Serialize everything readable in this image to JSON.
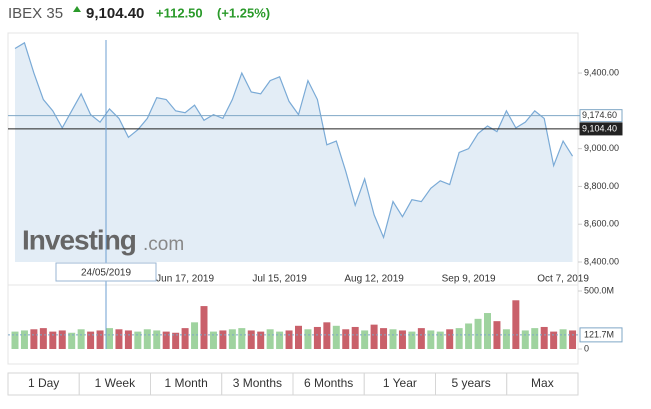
{
  "header": {
    "name": "IBEX 35",
    "price": "9,104.40",
    "change": "+112.50",
    "change_pct": "(+1.25%)"
  },
  "chart_data": {
    "type": "area",
    "color": "#7aaad6",
    "fill": "#e3edf6",
    "categories": [
      null,
      null,
      null,
      null,
      null,
      null,
      null,
      null,
      null,
      null,
      null,
      null,
      null,
      null,
      null,
      null,
      null,
      null,
      "Jun 17, 2019",
      null,
      null,
      null,
      null,
      null,
      null,
      null,
      null,
      null,
      "Jul 15, 2019",
      null,
      null,
      null,
      null,
      null,
      null,
      null,
      null,
      null,
      "Aug 12, 2019",
      null,
      null,
      null,
      null,
      null,
      null,
      null,
      null,
      null,
      "Sep 9, 2019",
      null,
      null,
      null,
      null,
      null,
      null,
      null,
      null,
      null,
      "Oct 7, 2019",
      null
    ],
    "values": [
      9530,
      9560,
      9400,
      9260,
      9200,
      9110,
      9200,
      9290,
      9180,
      9140,
      9210,
      9160,
      9060,
      9100,
      9160,
      9270,
      9260,
      9200,
      9190,
      9230,
      9150,
      9180,
      9160,
      9260,
      9400,
      9300,
      9290,
      9360,
      9380,
      9250,
      9180,
      9360,
      9260,
      9020,
      9040,
      8880,
      8700,
      8840,
      8650,
      8530,
      8720,
      8640,
      8730,
      8720,
      8790,
      8830,
      8810,
      8980,
      9000,
      9080,
      9120,
      9090,
      9200,
      9110,
      9140,
      9200,
      9160,
      8910,
      9040,
      8960
    ],
    "ylim": [
      8400,
      9575
    ],
    "yticks": [
      {
        "value": 8400,
        "label": "8,400.00"
      },
      {
        "value": 8600,
        "label": "8,600.00"
      },
      {
        "value": 8800,
        "label": "8,800.00"
      },
      {
        "value": 9000,
        "label": "9,000.00"
      },
      {
        "value": 9400,
        "label": "9,400.00"
      }
    ],
    "reference_lines": [
      {
        "value": 9174.6,
        "label": "9,174.60",
        "color": "#7fa7c6"
      },
      {
        "value": 9104.4,
        "label": "9,104.40",
        "color": "#222222"
      }
    ],
    "crosshair_label": "24/05/2019",
    "watermark": {
      "bold": "Investing",
      "suffix": ".com"
    },
    "volume": {
      "up_color": "#9fd39f",
      "down_color": "#c9606a",
      "values": [
        150000000,
        160000000,
        170000000,
        180000000,
        150000000,
        160000000,
        140000000,
        170000000,
        150000000,
        160000000,
        180000000,
        170000000,
        160000000,
        150000000,
        170000000,
        160000000,
        150000000,
        140000000,
        180000000,
        230000000,
        370000000,
        150000000,
        160000000,
        170000000,
        180000000,
        160000000,
        150000000,
        170000000,
        150000000,
        160000000,
        200000000,
        170000000,
        190000000,
        230000000,
        200000000,
        170000000,
        190000000,
        160000000,
        210000000,
        180000000,
        170000000,
        160000000,
        150000000,
        180000000,
        160000000,
        150000000,
        170000000,
        180000000,
        220000000,
        260000000,
        310000000,
        240000000,
        170000000,
        420000000,
        160000000,
        180000000,
        190000000,
        150000000,
        170000000,
        160000000
      ],
      "ylim": [
        0,
        500000000
      ],
      "yticks": [
        0,
        {
          "value": 500000000,
          "label": "500.0M"
        }
      ],
      "current": {
        "value": 121700000,
        "label": "121.7M"
      }
    }
  },
  "range_buttons": [
    "1 Day",
    "1 Week",
    "1 Month",
    "3 Months",
    "6 Months",
    "1 Year",
    "5 years",
    "Max"
  ]
}
